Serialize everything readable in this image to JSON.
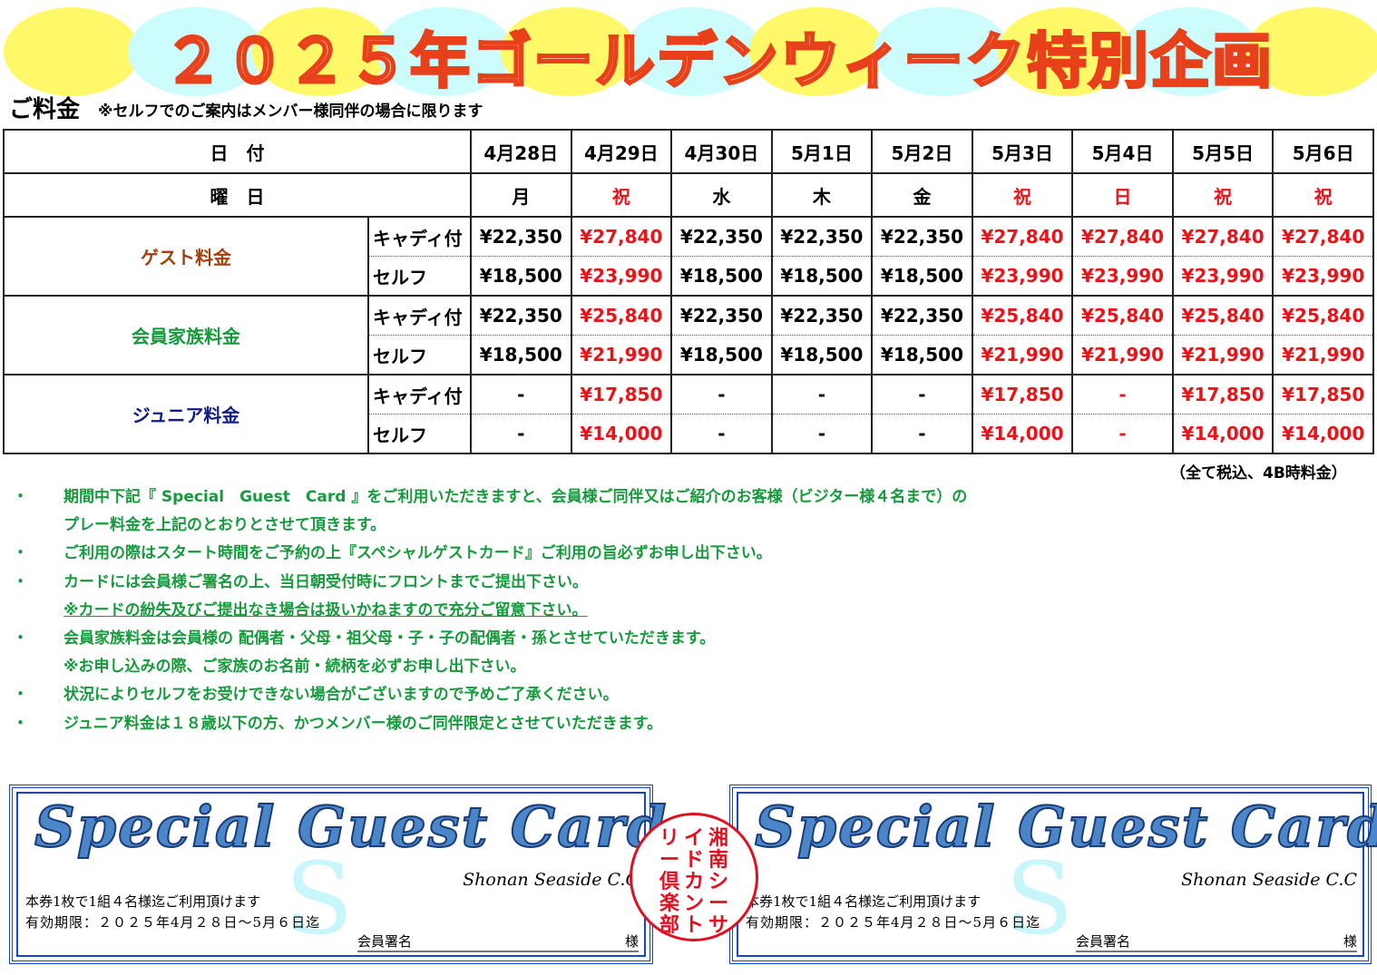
{
  "title": "２０２５年ゴールデンウィーク特別企画",
  "colors": {
    "holiday": "#e8141a",
    "guest": "#a0400c",
    "family": "#169a3c",
    "junior": "#101c88",
    "notes": "#169a3c",
    "card_border": "#1646c8"
  },
  "fee_heading": "ご料金",
  "fee_note": "※セルフでのご案内はメンバー様同伴の場合に限ります",
  "table": {
    "date_label": "日　付",
    "day_label": "曜　日",
    "dates": [
      "4月28日",
      "4月29日",
      "4月30日",
      "5月1日",
      "5月2日",
      "5月3日",
      "5月4日",
      "5月5日",
      "5月6日"
    ],
    "days": [
      "月",
      "祝",
      "水",
      "木",
      "金",
      "祝",
      "日",
      "祝",
      "祝"
    ],
    "holiday": [
      false,
      true,
      false,
      false,
      false,
      true,
      true,
      true,
      true
    ],
    "groups": [
      {
        "name": "ゲスト料金",
        "color": "#a0400c",
        "rows": [
          {
            "type": "キャディ付",
            "prices": [
              "¥22,350",
              "¥27,840",
              "¥22,350",
              "¥22,350",
              "¥22,350",
              "¥27,840",
              "¥27,840",
              "¥27,840",
              "¥27,840"
            ]
          },
          {
            "type": "セルフ",
            "prices": [
              "¥18,500",
              "¥23,990",
              "¥18,500",
              "¥18,500",
              "¥18,500",
              "¥23,990",
              "¥23,990",
              "¥23,990",
              "¥23,990"
            ]
          }
        ]
      },
      {
        "name": "会員家族料金",
        "color": "#169a3c",
        "rows": [
          {
            "type": "キャディ付",
            "prices": [
              "¥22,350",
              "¥25,840",
              "¥22,350",
              "¥22,350",
              "¥22,350",
              "¥25,840",
              "¥25,840",
              "¥25,840",
              "¥25,840"
            ]
          },
          {
            "type": "セルフ",
            "prices": [
              "¥18,500",
              "¥21,990",
              "¥18,500",
              "¥18,500",
              "¥18,500",
              "¥21,990",
              "¥21,990",
              "¥21,990",
              "¥21,990"
            ]
          }
        ]
      },
      {
        "name": "ジュニア料金",
        "color": "#101c88",
        "rows": [
          {
            "type": "キャディ付",
            "prices": [
              "-",
              "¥17,850",
              "-",
              "-",
              "-",
              "¥17,850",
              "-",
              "¥17,850",
              "¥17,850"
            ]
          },
          {
            "type": "セルフ",
            "prices": [
              "-",
              "¥14,000",
              "-",
              "-",
              "-",
              "¥14,000",
              "-",
              "¥14,000",
              "¥14,000"
            ]
          }
        ]
      }
    ]
  },
  "tax_note": "（全て税込、4B時料金）",
  "notes": [
    {
      "bullet": "・",
      "text": "期間中下記『 Special　Guest　Card 』をご利用いただきますと、会員様ご同伴又はご紹介のお客様（ビジター様４名まで）の"
    },
    {
      "bullet": "",
      "text": "プレー料金を上記のとおりとさせて頂きます。"
    },
    {
      "bullet": "・",
      "text": "ご利用の際はスタート時間をご予約の上『スペシャルゲストカード』ご利用の旨必ずお申し出下さい。"
    },
    {
      "bullet": "・",
      "text": "カードには会員様ご署名の上、当日朝受付時にフロントまでご提出下さい。"
    },
    {
      "bullet": "",
      "text": "※カードの紛失及びご提出なき場合は扱いかねますので充分ご留意下さい。",
      "underline": true
    },
    {
      "bullet": "・",
      "text": "会員家族料金は会員様の 配偶者・父母・祖父母・子・子の配偶者・孫とさせていただきます。"
    },
    {
      "bullet": "",
      "text": "※お申し込みの際、ご家族のお名前・続柄を必ずお申し出下さい。"
    },
    {
      "bullet": "・",
      "text": "状況によりセルフをお受けできない場合がございますので予めご了承ください。"
    },
    {
      "bullet": "・",
      "text": "ジュニア料金は１８歳以下の方、かつメンバー様のご同伴限定とさせていただきます。"
    }
  ],
  "card": {
    "title": "Special Guest Card",
    "watermark": "S",
    "club": "Shonan Seaside C.C",
    "line1": "本券1枚で1組４名様迄ご利用頂けます",
    "line2": "有効期限：２０２５年4月２８日～5月６日迄",
    "sign_label": "会員署名",
    "sign_suffix": "様"
  },
  "stamp": {
    "text": "湘南シーサイドカントリー倶楽部",
    "columns": [
      "湘南シーサ",
      "イドカント",
      "リー倶楽部"
    ]
  }
}
